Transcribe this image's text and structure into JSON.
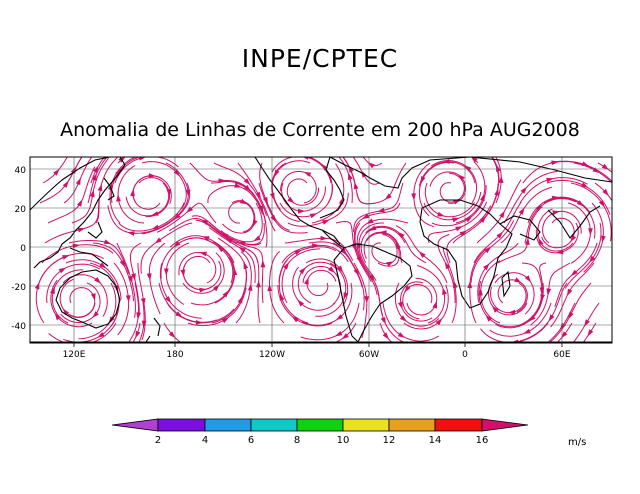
{
  "header": {
    "institution": "INPE/CPTEC",
    "title": "Anomalia de Linhas de Corrente em 200 hPa AUG2008"
  },
  "map": {
    "lat_ticks": [
      "40",
      "20",
      "0",
      "-20",
      "-40"
    ],
    "lon_ticks": [
      "120E",
      "180",
      "120W",
      "60W",
      "0",
      "60E"
    ]
  },
  "colorbar": {
    "levels": [
      "2",
      "4",
      "6",
      "8",
      "10",
      "12",
      "14",
      "16"
    ],
    "unit": "m/s",
    "colors": [
      "#b040d0",
      "#7a10e0",
      "#1f9be8",
      "#10c8c8",
      "#10d010",
      "#e8e020",
      "#e8a020",
      "#f01010",
      "#d0106a"
    ]
  }
}
